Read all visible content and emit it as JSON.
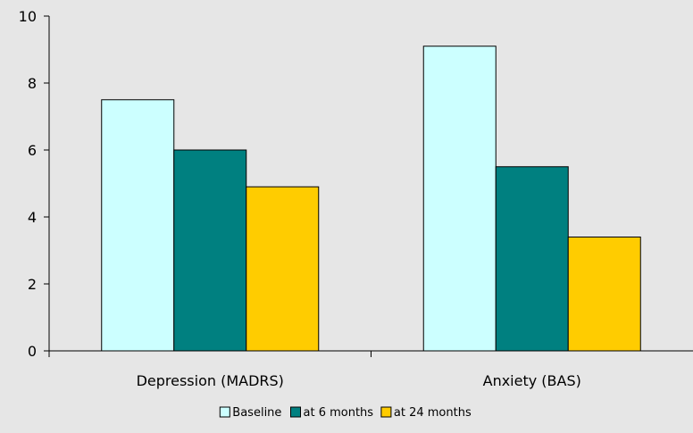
{
  "chart_data": {
    "type": "bar",
    "categories": [
      "Depression (MADRS)",
      "Anxiety (BAS)"
    ],
    "series": [
      {
        "name": "Baseline",
        "values": [
          7.5,
          9.1
        ],
        "color": "#ccffff"
      },
      {
        "name": "at 6 months",
        "values": [
          6.0,
          5.5
        ],
        "color": "#008080"
      },
      {
        "name": "at 24 months",
        "values": [
          4.9,
          3.4
        ],
        "color": "#ffcc00"
      }
    ],
    "ylim": [
      0,
      10
    ],
    "yticks": [
      0,
      2,
      4,
      6,
      8,
      10
    ],
    "grid": false,
    "legend": "bottom",
    "background": "#e6e6e6"
  }
}
